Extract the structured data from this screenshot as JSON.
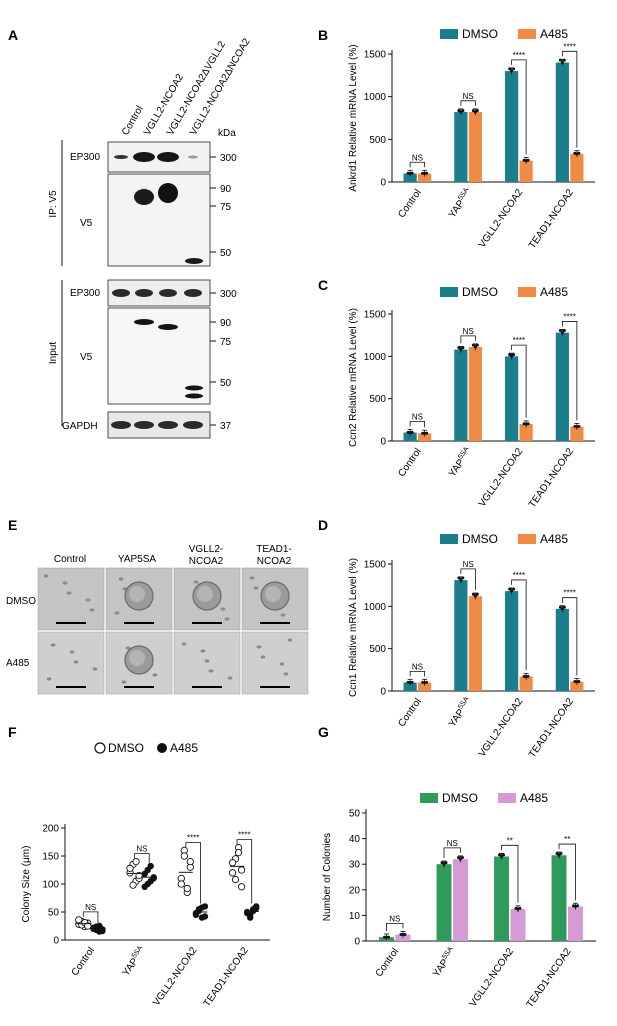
{
  "colors": {
    "dmso": "#1b7e8c",
    "a485": "#f08b45",
    "g_dmso": "#2e9a5b",
    "g_a485": "#d69ad6",
    "blot_bg": "#f2f2f2",
    "band": "#161616"
  },
  "panel_a": {
    "label": "A",
    "lanes": [
      "Control",
      "VGLL2-NCOA2",
      "VGLL2-NCOA2ΔVGLL2",
      "VGLL2-NCOA2ΔNCOA2"
    ],
    "kda_label": "kDa",
    "group_ip": "IP: V5",
    "group_input": "Input",
    "blots": [
      {
        "name": "EP300",
        "markers": [
          "300"
        ]
      },
      {
        "name": "V5",
        "markers": [
          "90",
          "75",
          "50"
        ]
      },
      {
        "name": "EP300",
        "markers": [
          "300"
        ]
      },
      {
        "name": "V5",
        "markers": [
          "90",
          "75",
          "50"
        ]
      },
      {
        "name": "GAPDH",
        "markers": [
          "37"
        ]
      }
    ]
  },
  "panel_e": {
    "label": "E",
    "columns": [
      "Control",
      "YAP5SA",
      "VGLL2-\nNCOA2",
      "TEAD1-\nNCOA2"
    ],
    "rows": [
      "DMSO",
      "A485"
    ]
  },
  "chart_data": [
    {
      "panel": "B",
      "type": "bar",
      "categories": [
        "Control",
        "YAP5SA",
        "VGLL2-NCOA2",
        "TEAD1-NCOA2"
      ],
      "series": [
        {
          "name": "DMSO",
          "values": [
            100,
            820,
            1300,
            1400
          ]
        },
        {
          "name": "A485",
          "values": [
            100,
            820,
            250,
            330
          ]
        }
      ],
      "significance": [
        "NS",
        "NS",
        "****",
        "****"
      ],
      "ylabel": "Ankrd1 Relative mRNA Level (%)",
      "ylim": [
        0,
        1500
      ],
      "yticks": [
        0,
        500,
        1000,
        1500
      ],
      "legend": "top"
    },
    {
      "panel": "C",
      "type": "bar",
      "categories": [
        "Control",
        "YAP5SA",
        "VGLL2-NCOA2",
        "TEAD1-NCOA2"
      ],
      "series": [
        {
          "name": "DMSO",
          "values": [
            100,
            1080,
            1000,
            1280
          ]
        },
        {
          "name": "A485",
          "values": [
            90,
            1110,
            200,
            170
          ]
        }
      ],
      "significance": [
        "NS",
        "NS",
        "****",
        "****"
      ],
      "ylabel": "Ccn2 Relative mRNA Level (%)",
      "ylim": [
        0,
        1500
      ],
      "yticks": [
        0,
        500,
        1000,
        1500
      ],
      "legend": "top"
    },
    {
      "panel": "D",
      "type": "bar",
      "categories": [
        "Control",
        "YAP5SA",
        "VGLL2-NCOA2",
        "TEAD1-NCOA2"
      ],
      "series": [
        {
          "name": "DMSO",
          "values": [
            100,
            1310,
            1180,
            970
          ]
        },
        {
          "name": "A485",
          "values": [
            100,
            1120,
            170,
            110
          ]
        }
      ],
      "significance": [
        "NS",
        "NS",
        "****",
        "****"
      ],
      "ylabel": "Ccn1 Relative mRNA Level (%)",
      "ylim": [
        0,
        1500
      ],
      "yticks": [
        0,
        500,
        1000,
        1500
      ],
      "legend": "top"
    },
    {
      "panel": "F",
      "type": "scatter",
      "categories": [
        "Control",
        "YAP5SA",
        "VGLL2-NCOA2",
        "TEAD1-NCOA2"
      ],
      "series": [
        {
          "name": "DMSO",
          "values": [
            [
              28,
              33,
              24,
              30,
              36,
              27,
              31,
              25
            ],
            [
              120,
              135,
              105,
              110,
              128,
              98,
              140,
              115
            ],
            [
              110,
              160,
              85,
              130,
              100,
              150,
              92,
              140
            ],
            [
              120,
              145,
              165,
              95,
              138,
              108,
              156,
              125
            ]
          ]
        },
        {
          "name": "A485",
          "values": [
            [
              22,
              18,
              25,
              16,
              20,
              24,
              15,
              19
            ],
            [
              118,
              100,
              132,
              110,
              95,
              125,
              105,
              112
            ],
            [
              48,
              55,
              40,
              60,
              45,
              52,
              58,
              42
            ],
            [
              50,
              45,
              55,
              60,
              48,
              40,
              52,
              57
            ]
          ]
        }
      ],
      "significance": [
        "NS",
        "NS",
        "****",
        "****"
      ],
      "ylabel": "Colony Size (μm)",
      "ylim": [
        0,
        200
      ],
      "yticks": [
        0,
        50,
        100,
        150,
        200
      ],
      "legend": "top"
    },
    {
      "panel": "G",
      "type": "bar",
      "categories": [
        "Control",
        "YAP5SA",
        "VGLL2-NCOA2",
        "TEAD1-NCOA2"
      ],
      "series": [
        {
          "name": "DMSO",
          "values": [
            1.5,
            30,
            33,
            33.5
          ]
        },
        {
          "name": "A485",
          "values": [
            2.5,
            32,
            12.5,
            13.5
          ]
        }
      ],
      "significance": [
        "NS",
        "NS",
        "**",
        "**"
      ],
      "ylabel": "Number of Colonies",
      "ylim": [
        0,
        50
      ],
      "yticks": [
        0,
        10,
        20,
        30,
        40,
        50
      ],
      "legend": "top"
    }
  ]
}
